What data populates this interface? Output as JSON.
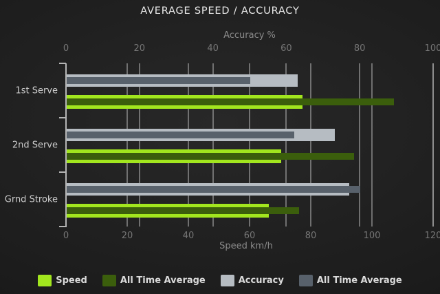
{
  "title": "AVERAGE SPEED / ACCURACY",
  "chart_data": {
    "type": "bar",
    "orientation": "horizontal",
    "grid": true,
    "legend_position": "bottom",
    "categories": [
      "1st Serve",
      "2nd Serve",
      "Grnd Stroke"
    ],
    "axes": {
      "top": {
        "label": "Accuracy %",
        "min": 0,
        "max": 100,
        "ticks": [
          0,
          20,
          40,
          60,
          80,
          100
        ]
      },
      "bottom": {
        "label": "Speed km/h",
        "min": 0,
        "max": 120,
        "ticks": [
          0,
          20,
          40,
          60,
          80,
          100,
          120
        ]
      }
    },
    "series": [
      {
        "name": "Speed",
        "axis": "bottom",
        "role": "outer",
        "pair": "speed",
        "color": "#a2e61e",
        "values": [
          77,
          70,
          66
        ]
      },
      {
        "name": "All Time Average",
        "axis": "bottom",
        "role": "inner",
        "pair": "speed",
        "color": "#3b5e0c",
        "values": [
          107,
          94,
          76
        ]
      },
      {
        "name": "Accuracy",
        "axis": "top",
        "role": "outer",
        "pair": "accuracy",
        "color": "#b6bcc2",
        "values": [
          63,
          73,
          77
        ]
      },
      {
        "name": "All Time Average",
        "axis": "top",
        "role": "inner",
        "pair": "accuracy",
        "color": "#58616b",
        "values": [
          50,
          62,
          80
        ]
      }
    ],
    "legend": [
      {
        "label": "Speed",
        "color": "#a2e61e"
      },
      {
        "label": "All Time Average",
        "color": "#3b5e0c"
      },
      {
        "label": "Accuracy",
        "color": "#b6bcc2"
      },
      {
        "label": "All Time Average",
        "color": "#58616b"
      }
    ]
  },
  "colors": {
    "background_center": "#282828",
    "background_edge": "#131313",
    "title_text": "#eaeaea",
    "axis_title_text": "#8a8a8a",
    "tick_text": "#767676",
    "category_text": "#cdcdcd",
    "gridline": "#a5a5a5",
    "axis_line": "#b5b5b5",
    "speed": "#a2e61e",
    "speed_all_time": "#3b5e0c",
    "accuracy": "#b6bcc2",
    "accuracy_all_time": "#58616b"
  }
}
